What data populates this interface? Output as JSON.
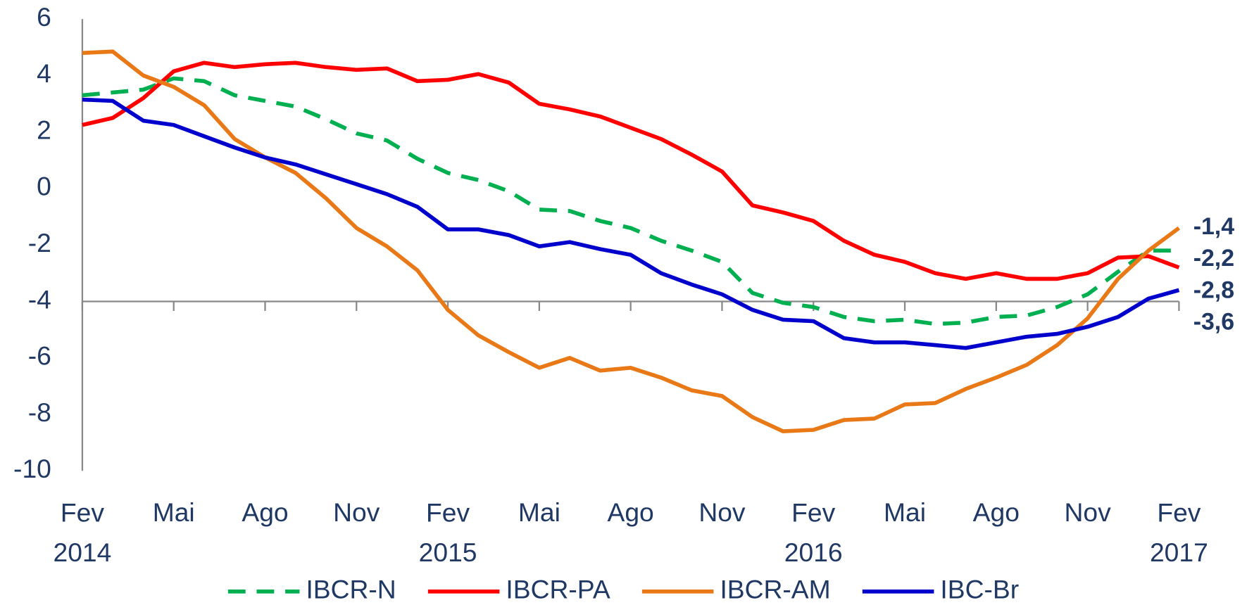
{
  "chart_data": {
    "type": "line",
    "categories": [
      "Fev 2014",
      null,
      null,
      "Mai",
      null,
      null,
      "Ago",
      null,
      null,
      "Nov",
      null,
      null,
      "Fev 2015",
      null,
      null,
      "Mai",
      null,
      null,
      "Ago",
      null,
      null,
      "Nov",
      null,
      null,
      "Fev 2016",
      null,
      null,
      "Mai",
      null,
      null,
      "Ago",
      null,
      null,
      "Nov",
      null,
      null,
      "Fev 2017"
    ],
    "ylim": [
      -10,
      6
    ],
    "yticks": [
      -10,
      -8,
      -6,
      -4,
      -2,
      0,
      2,
      4,
      6
    ],
    "xaxis_crossing": -4,
    "legend": "bottom",
    "series": [
      {
        "name": "IBCR-N",
        "color": "#00b050",
        "dashed": true,
        "values": [
          3.3,
          3.4,
          3.5,
          3.9,
          3.8,
          3.3,
          3.1,
          2.9,
          2.45,
          1.95,
          1.7,
          1.05,
          0.55,
          0.3,
          -0.1,
          -0.75,
          -0.8,
          -1.15,
          -1.4,
          -1.85,
          -2.2,
          -2.6,
          -3.7,
          -4.05,
          -4.2,
          -4.55,
          -4.7,
          -4.65,
          -4.8,
          -4.75,
          -4.55,
          -4.5,
          -4.2,
          -3.75,
          -2.95,
          -2.2,
          -2.2
        ],
        "end_label": "-2,2"
      },
      {
        "name": "IBCR-PA",
        "color": "#ff0000",
        "dashed": false,
        "values": [
          2.25,
          2.5,
          3.2,
          4.15,
          4.45,
          4.3,
          4.4,
          4.45,
          4.3,
          4.2,
          4.25,
          3.8,
          3.85,
          4.05,
          3.75,
          3.0,
          2.8,
          2.55,
          2.15,
          1.75,
          1.2,
          0.6,
          -0.6,
          -0.85,
          -1.15,
          -1.85,
          -2.35,
          -2.6,
          -3.0,
          -3.2,
          -3.0,
          -3.2,
          -3.2,
          -3.0,
          -2.45,
          -2.4,
          -2.8
        ],
        "end_label": "-2,8"
      },
      {
        "name": "IBCR-AM",
        "color": "#e97817",
        "dashed": false,
        "values": [
          4.8,
          4.85,
          4.0,
          3.6,
          2.95,
          1.75,
          1.1,
          0.55,
          -0.35,
          -1.4,
          -2.05,
          -2.9,
          -4.3,
          -5.2,
          -5.8,
          -6.35,
          -6.0,
          -6.45,
          -6.35,
          -6.7,
          -7.15,
          -7.35,
          -8.1,
          -8.6,
          -8.55,
          -8.2,
          -8.15,
          -7.65,
          -7.6,
          -7.1,
          -6.7,
          -6.25,
          -5.55,
          -4.6,
          -3.2,
          -2.2,
          -1.4
        ],
        "end_label": "-1,4"
      },
      {
        "name": "IBC-Br",
        "color": "#0000cc",
        "dashed": false,
        "values": [
          3.15,
          3.1,
          2.4,
          2.25,
          1.85,
          1.45,
          1.1,
          0.85,
          0.5,
          0.15,
          -0.2,
          -0.65,
          -1.45,
          -1.45,
          -1.65,
          -2.05,
          -1.9,
          -2.15,
          -2.35,
          -3.0,
          -3.4,
          -3.75,
          -4.3,
          -4.65,
          -4.7,
          -5.3,
          -5.45,
          -5.45,
          -5.55,
          -5.65,
          -5.45,
          -5.25,
          -5.15,
          -4.9,
          -4.55,
          -3.9,
          -3.6
        ],
        "end_label": "-3,6"
      }
    ]
  }
}
